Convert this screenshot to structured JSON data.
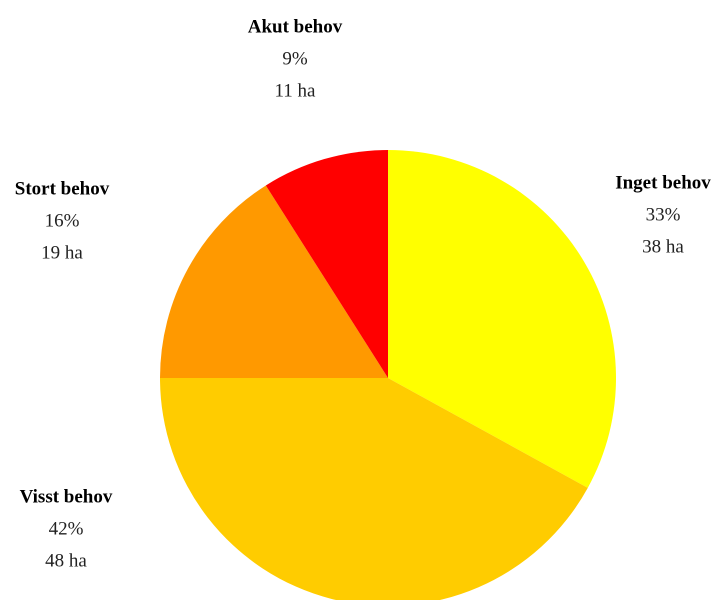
{
  "chart_data": {
    "type": "pie",
    "categories": [
      "Inget behov",
      "Visst behov",
      "Stort behov",
      "Akut behov"
    ],
    "values": [
      33,
      42,
      16,
      9
    ],
    "value_labels": [
      "33%",
      "42%",
      "16%",
      "9%"
    ],
    "areas": [
      38,
      48,
      19,
      11
    ],
    "area_labels": [
      "38 ha",
      "48 ha",
      "19 ha",
      "11 ha"
    ],
    "colors": [
      "#ffff00",
      "#ffcc00",
      "#ff9900",
      "#ff0000"
    ]
  }
}
